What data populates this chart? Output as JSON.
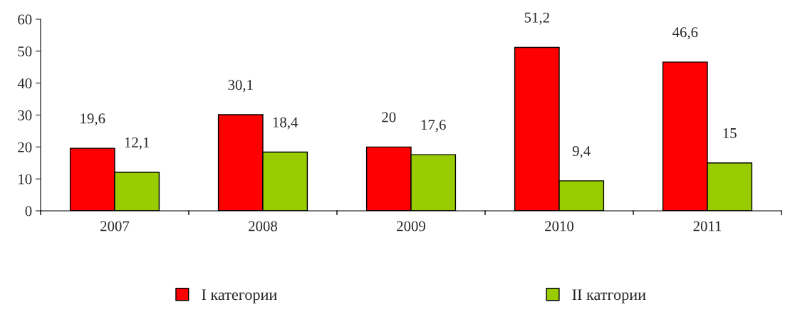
{
  "chart_data": {
    "type": "bar",
    "categories": [
      "2007",
      "2008",
      "2009",
      "2010",
      "2011"
    ],
    "series": [
      {
        "name": "I категории",
        "color": "#ff0000",
        "values": [
          19.6,
          30.1,
          20,
          51.2,
          46.6
        ],
        "value_labels": [
          "19,6",
          "30,1",
          "20",
          "51,2",
          "46,6"
        ]
      },
      {
        "name": "II катгории",
        "color": "#99cc00",
        "values": [
          12.1,
          18.4,
          17.6,
          9.4,
          15
        ],
        "value_labels": [
          "12,1",
          "18,4",
          "17,6",
          "9,4",
          "15"
        ]
      }
    ],
    "ylim": [
      0,
      60
    ],
    "yticks": [
      0,
      10,
      20,
      30,
      40,
      50,
      60
    ],
    "grid": false,
    "legend": "bottom"
  }
}
